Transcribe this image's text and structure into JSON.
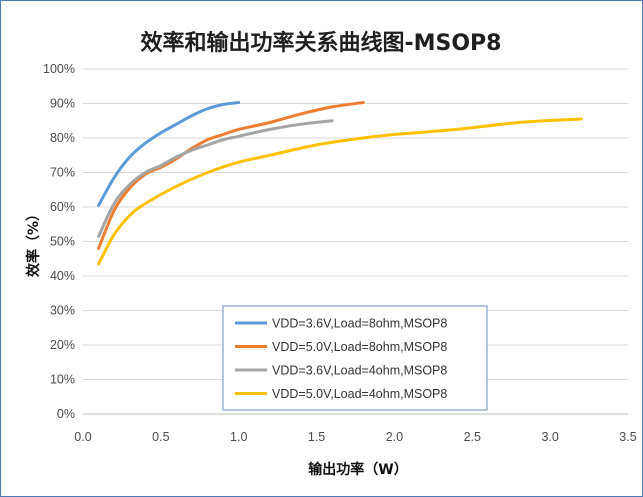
{
  "chart_data": {
    "type": "line",
    "title": "效率和输出功率关系曲线图-MSOP8",
    "xlabel": "输出功率（W）",
    "ylabel": "效率（%）",
    "xlim": [
      0,
      3.5
    ],
    "ylim": [
      0,
      100
    ],
    "x_ticks": [
      "0.0",
      "0.5",
      "1.0",
      "1.5",
      "2.0",
      "2.5",
      "3.0",
      "3.5"
    ],
    "x_tick_values": [
      0,
      0.5,
      1.0,
      1.5,
      2.0,
      2.5,
      3.0,
      3.5
    ],
    "y_ticks": [
      "0%",
      "10%",
      "20%",
      "30%",
      "40%",
      "50%",
      "60%",
      "70%",
      "80%",
      "90%",
      "100%"
    ],
    "y_tick_values": [
      0,
      10,
      20,
      30,
      40,
      50,
      60,
      70,
      80,
      90,
      100
    ],
    "grid": "horizontal",
    "legend_position": "bottom-center",
    "series": [
      {
        "name": "VDD=3.6V,Load=8ohm,MSOP8",
        "color": "#5b9bd5",
        "x": [
          0.1,
          0.2,
          0.3,
          0.4,
          0.5,
          0.6,
          0.7,
          0.8,
          0.9,
          1.0
        ],
        "y": [
          60.5,
          68.5,
          74.5,
          78.5,
          81.5,
          84,
          86.5,
          88.5,
          89.7,
          90.3
        ]
      },
      {
        "name": "VDD=5.0V,Load=8ohm,MSOP8",
        "color": "#ed7d31",
        "x": [
          0.1,
          0.2,
          0.3,
          0.4,
          0.5,
          0.6,
          0.7,
          0.8,
          0.9,
          1.0,
          1.2,
          1.4,
          1.6,
          1.8
        ],
        "y": [
          48,
          59,
          65.5,
          69.5,
          71.5,
          74,
          77,
          79.5,
          81,
          82.5,
          84.5,
          87,
          89,
          90.3
        ]
      },
      {
        "name": "VDD=3.6V,Load=4ohm,MSOP8",
        "color": "#a5a5a5",
        "x": [
          0.1,
          0.2,
          0.3,
          0.4,
          0.5,
          0.6,
          0.7,
          0.8,
          0.9,
          1.0,
          1.2,
          1.4,
          1.6
        ],
        "y": [
          51.5,
          61,
          66.5,
          70,
          72,
          74.5,
          76.5,
          78,
          79.5,
          80.5,
          82.5,
          84,
          85
        ]
      },
      {
        "name": "VDD=5.0V,Load=4ohm,MSOP8",
        "color": "#ffc000",
        "x": [
          0.1,
          0.2,
          0.3,
          0.4,
          0.6,
          0.8,
          1.0,
          1.2,
          1.5,
          1.8,
          2.0,
          2.4,
          2.8,
          3.2
        ],
        "y": [
          43.5,
          52,
          57.5,
          61,
          66,
          70,
          73,
          75,
          78,
          80,
          81,
          82.5,
          84.5,
          85.5
        ]
      }
    ]
  }
}
